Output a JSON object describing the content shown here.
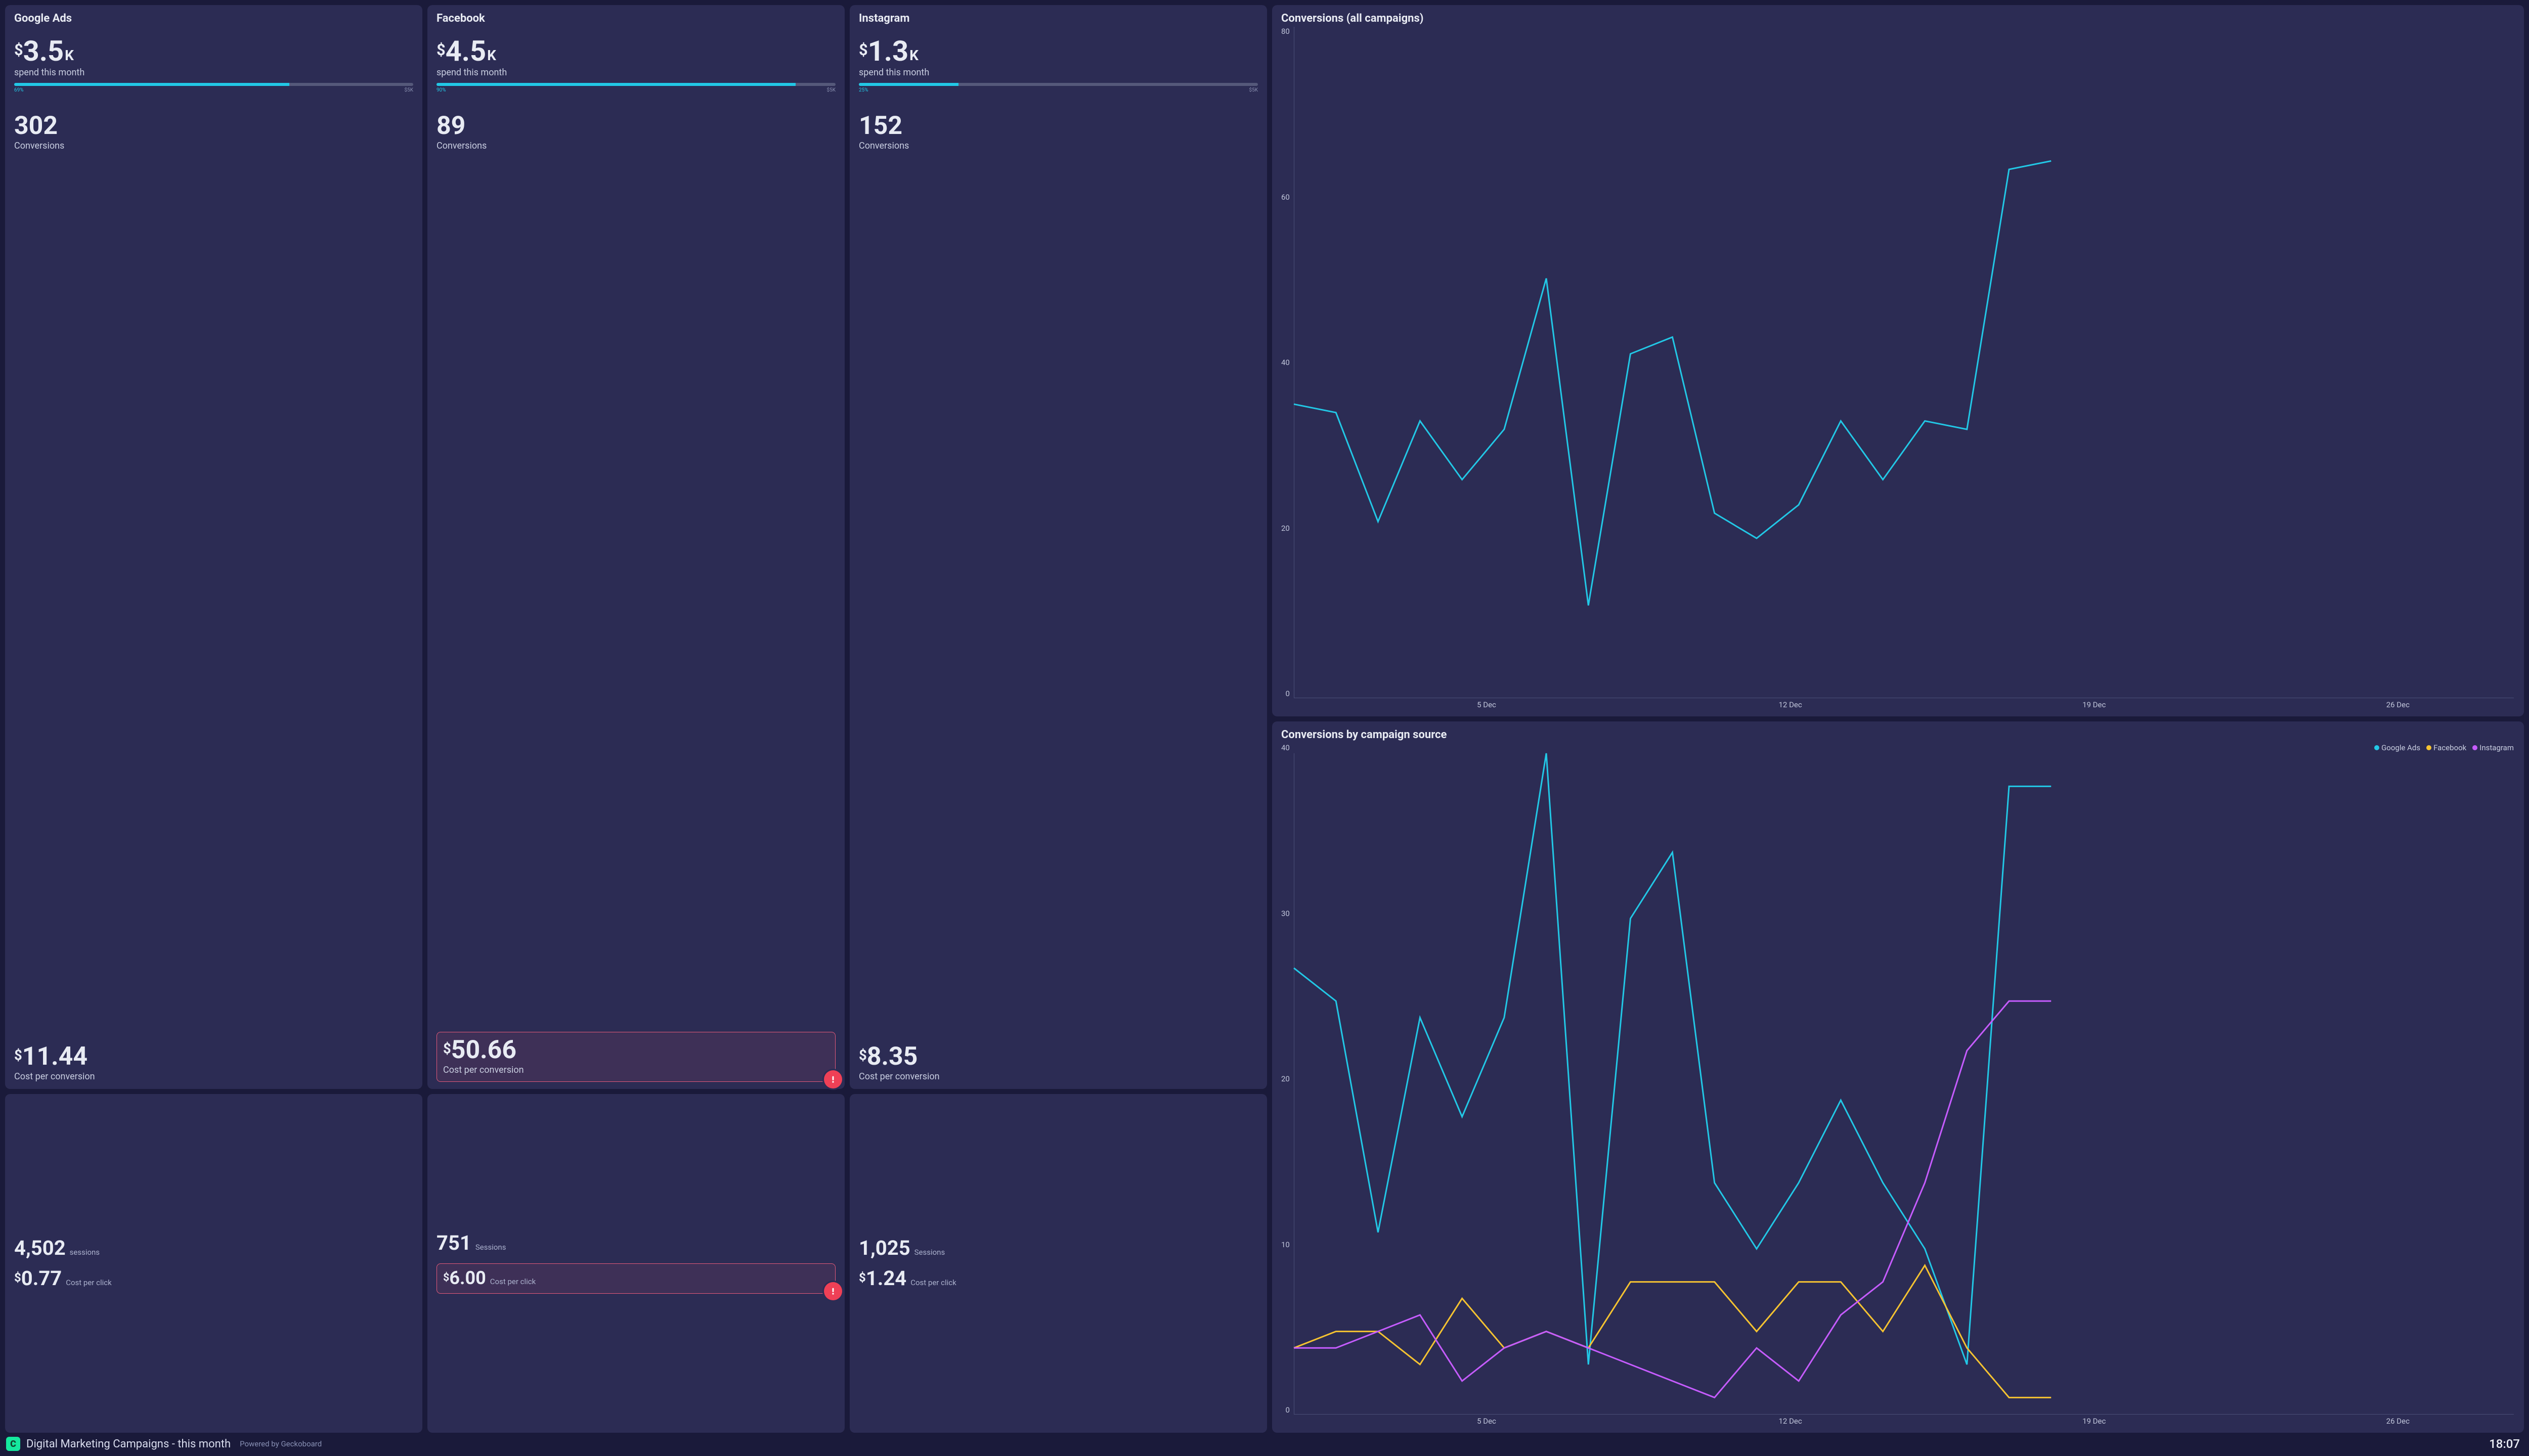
{
  "colors": {
    "page_bg": "#1a1a3a",
    "card_bg": "#2c2c54",
    "text_primary": "#e8ebf3",
    "text_secondary": "#c8cde0",
    "accent": "#22c8e6",
    "alert": "#ef4056",
    "alert_border": "#e45a7a",
    "axis": "#4a4f78",
    "logo_bg": "#15e89e"
  },
  "campaigns": [
    {
      "key": "google",
      "title": "Google Ads",
      "spend_value": "3.5",
      "spend_suffix": "K",
      "spend_label": "spend this month",
      "progress_pct": 69,
      "progress_label": "69%",
      "progress_max": "$5K",
      "conversions": "302",
      "conversions_label": "Conversions",
      "cpc_value": "11.44",
      "cpc_label": "Cost per conversion",
      "cpc_alert": false,
      "sessions": "4,502",
      "sessions_label": "sessions",
      "cost_click": "0.77",
      "cost_click_label": "Cost per click",
      "cost_click_alert": false
    },
    {
      "key": "facebook",
      "title": "Facebook",
      "spend_value": "4.5",
      "spend_suffix": "K",
      "spend_label": "spend this month",
      "progress_pct": 90,
      "progress_label": "90%",
      "progress_max": "$5K",
      "conversions": "89",
      "conversions_label": "Conversions",
      "cpc_value": "50.66",
      "cpc_label": "Cost per conversion",
      "cpc_alert": true,
      "sessions": "751",
      "sessions_label": "Sessions",
      "cost_click": "6.00",
      "cost_click_label": "Cost per click",
      "cost_click_alert": true
    },
    {
      "key": "instagram",
      "title": "Instagram",
      "spend_value": "1.3",
      "spend_suffix": "K",
      "spend_label": "spend this month",
      "progress_pct": 25,
      "progress_label": "25%",
      "progress_max": "$5K",
      "conversions": "152",
      "conversions_label": "Conversions",
      "cpc_value": "8.35",
      "cpc_label": "Cost per conversion",
      "cpc_alert": false,
      "sessions": "1,025",
      "sessions_label": "Sessions",
      "cost_click": "1.24",
      "cost_click_label": "Cost per click",
      "cost_click_alert": false
    }
  ],
  "chart_all": {
    "title": "Conversions (all campaigns)",
    "type": "line",
    "y_ticks": [
      "80",
      "60",
      "40",
      "20",
      "0"
    ],
    "ylim": [
      0,
      80
    ],
    "x_ticks": [
      {
        "label": "5 Dec",
        "pos": 0.158
      },
      {
        "label": "12 Dec",
        "pos": 0.407
      },
      {
        "label": "19 Dec",
        "pos": 0.656
      },
      {
        "label": "26 Dec",
        "pos": 0.905
      }
    ],
    "line_color": "#22c8e6",
    "line_width": 3,
    "x_extent": 29,
    "points": [
      {
        "x": 0,
        "y": 35
      },
      {
        "x": 1,
        "y": 34
      },
      {
        "x": 2,
        "y": 21
      },
      {
        "x": 3,
        "y": 33
      },
      {
        "x": 4,
        "y": 26
      },
      {
        "x": 5,
        "y": 32
      },
      {
        "x": 6,
        "y": 50
      },
      {
        "x": 7,
        "y": 11
      },
      {
        "x": 8,
        "y": 41
      },
      {
        "x": 9,
        "y": 43
      },
      {
        "x": 10,
        "y": 22
      },
      {
        "x": 11,
        "y": 19
      },
      {
        "x": 12,
        "y": 23
      },
      {
        "x": 13,
        "y": 33
      },
      {
        "x": 14,
        "y": 26
      },
      {
        "x": 15,
        "y": 33
      },
      {
        "x": 16,
        "y": 32
      },
      {
        "x": 17,
        "y": 63
      },
      {
        "x": 18,
        "y": 64
      }
    ]
  },
  "chart_by_source": {
    "title": "Conversions by campaign source",
    "type": "line",
    "y_ticks": [
      "40",
      "30",
      "20",
      "10",
      "0"
    ],
    "ylim": [
      0,
      40
    ],
    "x_ticks": [
      {
        "label": "5 Dec",
        "pos": 0.158
      },
      {
        "label": "12 Dec",
        "pos": 0.407
      },
      {
        "label": "19 Dec",
        "pos": 0.656
      },
      {
        "label": "26 Dec",
        "pos": 0.905
      }
    ],
    "x_extent": 29,
    "line_width": 3,
    "legend": [
      {
        "label": "Google Ads",
        "color": "#22c8e6"
      },
      {
        "label": "Facebook",
        "color": "#f5c331"
      },
      {
        "label": "Instagram",
        "color": "#c65cff"
      }
    ],
    "series": [
      {
        "name": "Google Ads",
        "color": "#22c8e6",
        "points": [
          {
            "x": 0,
            "y": 27
          },
          {
            "x": 1,
            "y": 25
          },
          {
            "x": 2,
            "y": 11
          },
          {
            "x": 3,
            "y": 24
          },
          {
            "x": 4,
            "y": 18
          },
          {
            "x": 5,
            "y": 24
          },
          {
            "x": 6,
            "y": 40
          },
          {
            "x": 7,
            "y": 3
          },
          {
            "x": 8,
            "y": 30
          },
          {
            "x": 9,
            "y": 34
          },
          {
            "x": 10,
            "y": 14
          },
          {
            "x": 11,
            "y": 10
          },
          {
            "x": 12,
            "y": 14
          },
          {
            "x": 13,
            "y": 19
          },
          {
            "x": 14,
            "y": 14
          },
          {
            "x": 15,
            "y": 10
          },
          {
            "x": 16,
            "y": 3
          },
          {
            "x": 17,
            "y": 38
          },
          {
            "x": 18,
            "y": 38
          }
        ]
      },
      {
        "name": "Facebook",
        "color": "#f5c331",
        "points": [
          {
            "x": 0,
            "y": 4
          },
          {
            "x": 1,
            "y": 5
          },
          {
            "x": 2,
            "y": 5
          },
          {
            "x": 3,
            "y": 3
          },
          {
            "x": 4,
            "y": 7
          },
          {
            "x": 5,
            "y": 4
          },
          {
            "x": 6,
            "y": 5
          },
          {
            "x": 7,
            "y": 4
          },
          {
            "x": 8,
            "y": 8
          },
          {
            "x": 9,
            "y": 8
          },
          {
            "x": 10,
            "y": 8
          },
          {
            "x": 11,
            "y": 5
          },
          {
            "x": 12,
            "y": 8
          },
          {
            "x": 13,
            "y": 8
          },
          {
            "x": 14,
            "y": 5
          },
          {
            "x": 15,
            "y": 9
          },
          {
            "x": 16,
            "y": 4
          },
          {
            "x": 17,
            "y": 1
          },
          {
            "x": 18,
            "y": 1
          }
        ]
      },
      {
        "name": "Instagram",
        "color": "#c65cff",
        "points": [
          {
            "x": 0,
            "y": 4
          },
          {
            "x": 1,
            "y": 4
          },
          {
            "x": 2,
            "y": 5
          },
          {
            "x": 3,
            "y": 6
          },
          {
            "x": 4,
            "y": 2
          },
          {
            "x": 5,
            "y": 4
          },
          {
            "x": 6,
            "y": 5
          },
          {
            "x": 7,
            "y": 4
          },
          {
            "x": 8,
            "y": 3
          },
          {
            "x": 9,
            "y": 2
          },
          {
            "x": 10,
            "y": 1
          },
          {
            "x": 11,
            "y": 4
          },
          {
            "x": 12,
            "y": 2
          },
          {
            "x": 13,
            "y": 6
          },
          {
            "x": 14,
            "y": 8
          },
          {
            "x": 15,
            "y": 14
          },
          {
            "x": 16,
            "y": 22
          },
          {
            "x": 17,
            "y": 25
          },
          {
            "x": 18,
            "y": 25
          }
        ]
      }
    ]
  },
  "footer": {
    "title": "Digital Marketing Campaigns - this month",
    "powered_by": "Powered by Geckoboard",
    "time": "18:07",
    "logo_glyph": "C"
  }
}
